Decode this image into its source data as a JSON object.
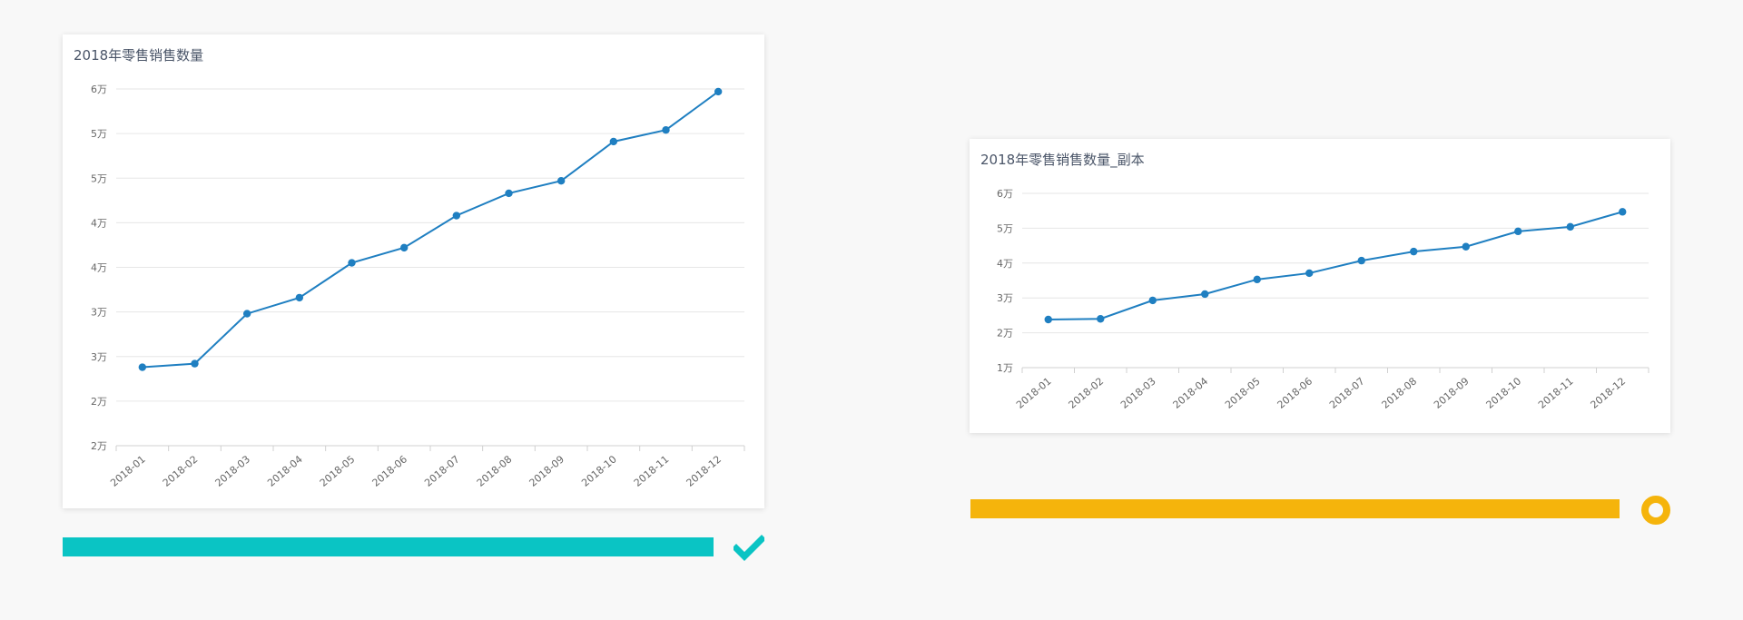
{
  "colors": {
    "series": "#1f7fc1",
    "progress_left": "#0ac4c4",
    "progress_right": "#f5b40c",
    "check": "#0ac4c4",
    "ring": "#f5b40c"
  },
  "cards": [
    {
      "title": "2018年零售销售数量"
    },
    {
      "title": "2018年零售销售数量_副本"
    }
  ],
  "progress": [
    {
      "status_icon": "check-icon"
    },
    {
      "status_icon": "ring-icon"
    }
  ],
  "chart_data": [
    {
      "type": "line",
      "title": "2018年零售销售数量",
      "categories": [
        "2018-01",
        "2018-02",
        "2018-03",
        "2018-04",
        "2018-05",
        "2018-06",
        "2018-07",
        "2018-08",
        "2018-09",
        "2018-10",
        "2018-11",
        "2018-12"
      ],
      "values": [
        23800,
        24200,
        29800,
        31600,
        35500,
        37200,
        40800,
        43300,
        44700,
        49100,
        50400,
        54700
      ],
      "ylim": [
        15000,
        55000
      ],
      "y_tick_values": [
        15000,
        20000,
        25000,
        30000,
        35000,
        40000,
        45000,
        50000,
        55000
      ],
      "y_tick_labels": [
        "2万",
        "2万",
        "3万",
        "3万",
        "4万",
        "4万",
        "5万",
        "5万",
        "6万"
      ],
      "grid": true
    },
    {
      "type": "line",
      "title": "2018年零售销售数量_副本",
      "categories": [
        "2018-01",
        "2018-02",
        "2018-03",
        "2018-04",
        "2018-05",
        "2018-06",
        "2018-07",
        "2018-08",
        "2018-09",
        "2018-10",
        "2018-11",
        "2018-12"
      ],
      "values": [
        23800,
        24000,
        29300,
        31100,
        35300,
        37100,
        40700,
        43300,
        44700,
        49100,
        50400,
        54700
      ],
      "ylim": [
        10000,
        60000
      ],
      "y_tick_values": [
        10000,
        20000,
        30000,
        40000,
        50000,
        60000
      ],
      "y_tick_labels": [
        "1万",
        "2万",
        "3万",
        "4万",
        "5万",
        "6万"
      ],
      "grid": true
    }
  ]
}
